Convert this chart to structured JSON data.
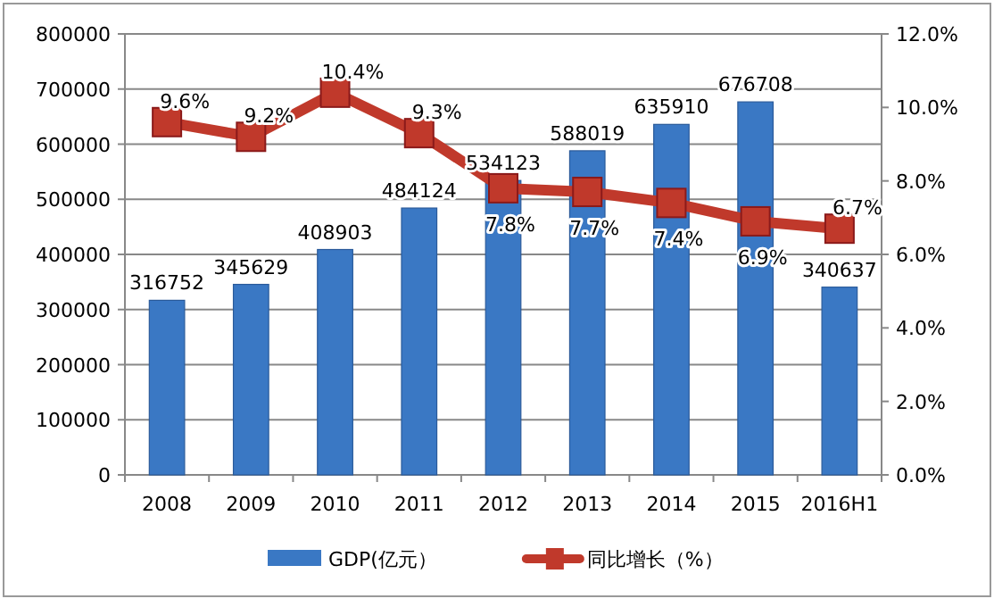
{
  "chart_data": {
    "type": "bar",
    "categories": [
      "2008",
      "2009",
      "2010",
      "2011",
      "2012",
      "2013",
      "2014",
      "2015",
      "2016H1"
    ],
    "series": [
      {
        "name": "GDP(亿元）",
        "color": "#3a78c4",
        "values": [
          316752,
          345629,
          408903,
          484124,
          534123,
          588019,
          635910,
          676708,
          340637
        ],
        "value_labels": [
          "316752",
          "345629",
          "408903",
          "484124",
          "534123",
          "588019",
          "635910",
          "676708",
          "340637"
        ]
      },
      {
        "name": "同比增长（%）",
        "type": "line",
        "axis": "y2",
        "color": "#c0392b",
        "marker": "square",
        "values": [
          9.6,
          9.2,
          10.4,
          9.3,
          7.8,
          7.7,
          7.4,
          6.9,
          6.7
        ],
        "value_labels": [
          "9.6%",
          "9.2%",
          "10.4%",
          "9.3%",
          "7.8%",
          "7.7%",
          "7.4%",
          "6.9%",
          "6.7%"
        ]
      }
    ],
    "ylim": [
      0,
      800000
    ],
    "yticks": [
      0,
      100000,
      200000,
      300000,
      400000,
      500000,
      600000,
      700000,
      800000
    ],
    "y2lim": [
      0,
      12
    ],
    "y2ticks": [
      {
        "value": 0,
        "label": "0.0%"
      },
      {
        "value": 2,
        "label": "2.0%"
      },
      {
        "value": 4,
        "label": "4.0%"
      },
      {
        "value": 6,
        "label": "6.0%"
      },
      {
        "value": 8,
        "label": "8.0%"
      },
      {
        "value": 10,
        "label": "10.0%"
      },
      {
        "value": 12,
        "label": "12.0%"
      }
    ],
    "grid": "y",
    "legend": "bottom"
  }
}
